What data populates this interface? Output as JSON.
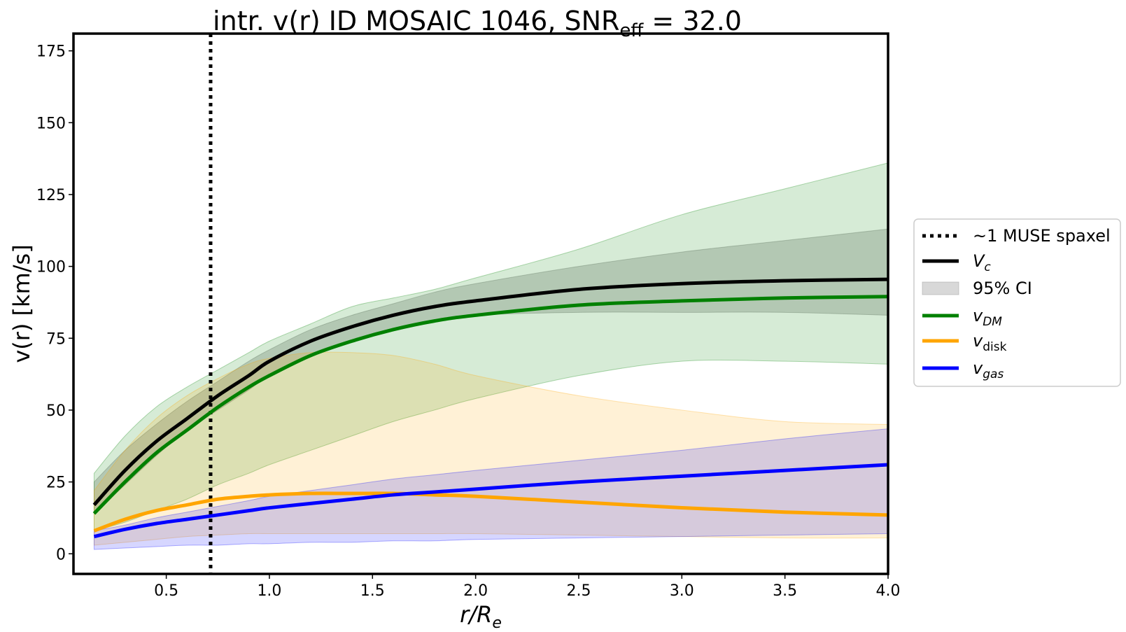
{
  "chart_data": {
    "type": "line",
    "title": {
      "main": "intr. v(r) ID MOSAIC 1046, SNR",
      "sub": "eff",
      "suffix": " = 32.0"
    },
    "xlabel": {
      "main": "r/R",
      "sub": "e"
    },
    "ylabel": "v(r) [km/s]",
    "xlim": [
      0.05,
      4.0
    ],
    "ylim": [
      -7,
      181
    ],
    "xticks": [
      0.5,
      1.0,
      1.5,
      2.0,
      2.5,
      3.0,
      3.5,
      4.0
    ],
    "xtick_labels": [
      "0.5",
      "1.0",
      "1.5",
      "2.0",
      "2.5",
      "3.0",
      "3.5",
      "4.0"
    ],
    "yticks": [
      0,
      25,
      50,
      75,
      100,
      125,
      150,
      175
    ],
    "ytick_labels": [
      "0",
      "25",
      "50",
      "75",
      "100",
      "125",
      "150",
      "175"
    ],
    "grid": false,
    "legend_position": "outside-right",
    "vline": {
      "x": 0.715,
      "style": "dotted",
      "color": "#000000"
    },
    "x": [
      0.15,
      0.3,
      0.45,
      0.6,
      0.75,
      0.9,
      1.0,
      1.2,
      1.4,
      1.6,
      1.8,
      2.0,
      2.5,
      3.0,
      3.5,
      4.0
    ],
    "series": [
      {
        "key": "vc",
        "name": "V",
        "name_sub": "c",
        "italic": true,
        "color": "#000000",
        "values": [
          17,
          29,
          39,
          47,
          55,
          62,
          67,
          74,
          79,
          83,
          86,
          88,
          92,
          94,
          95,
          95.5
        ],
        "band_lower": [
          14,
          24,
          34,
          43,
          50,
          57,
          62,
          69,
          74,
          78,
          81,
          83,
          84,
          84,
          84,
          83
        ],
        "band_upper": [
          25,
          36,
          45,
          53,
          60,
          67,
          71,
          78,
          83,
          87,
          91,
          94,
          100,
          105,
          109,
          113
        ],
        "band_color": "#5a5a5a",
        "band_opacity": 0.25
      },
      {
        "key": "vdm",
        "name": "v",
        "name_sub": "DM",
        "italic": true,
        "color": "#008000",
        "values": [
          14,
          25,
          35,
          43,
          51,
          58,
          62,
          69,
          74,
          78,
          81,
          83,
          86.5,
          88,
          89,
          89.5
        ],
        "band_lower": [
          8,
          11,
          15,
          19,
          24,
          28,
          31,
          36,
          41,
          46,
          50,
          54,
          62,
          67,
          67,
          66
        ],
        "band_upper": [
          28,
          41,
          51,
          58,
          64,
          70,
          74,
          80,
          86,
          89,
          92,
          96,
          106,
          118,
          127,
          136
        ],
        "band_color": "#008000",
        "band_opacity": 0.16
      },
      {
        "key": "vdisk",
        "name": "v",
        "name_sub": "disk",
        "italic_main_only": true,
        "color": "#ffa500",
        "values": [
          8,
          12,
          15,
          17,
          19,
          20,
          20.5,
          21,
          21,
          21,
          20.5,
          20,
          18,
          16,
          14.5,
          13.5
        ],
        "band_lower": [
          3,
          4,
          5,
          6,
          6.5,
          7,
          7,
          7,
          7,
          7,
          7,
          7,
          6.5,
          6,
          5.5,
          5.5
        ],
        "band_upper": [
          22,
          36,
          47,
          55,
          61,
          66,
          68,
          70,
          70,
          69,
          66,
          62,
          55,
          50,
          46,
          45
        ],
        "band_color": "#ffa500",
        "band_opacity": 0.16
      },
      {
        "key": "vgas",
        "name": "v",
        "name_sub": "gas",
        "italic": true,
        "color": "#0000ff",
        "values": [
          6,
          8.5,
          10.5,
          12,
          13.5,
          15,
          16,
          17.5,
          19,
          20.5,
          21.5,
          22.5,
          25,
          27,
          29,
          31
        ],
        "band_lower": [
          1.5,
          2,
          2.5,
          3,
          3,
          3.5,
          3.5,
          4,
          4,
          4.5,
          4.5,
          5,
          5.5,
          6,
          6.5,
          7
        ],
        "band_upper": [
          8,
          10,
          12.5,
          14.5,
          16.5,
          18.5,
          20,
          22,
          24,
          26,
          27.5,
          29,
          32.5,
          36,
          40,
          43.5
        ],
        "band_color": "#0000ff",
        "band_opacity": 0.16
      }
    ],
    "legend": [
      {
        "kind": "dotted",
        "label": "~1 MUSE spaxel",
        "color": "#000000"
      },
      {
        "kind": "line",
        "main": "V",
        "sub": "c",
        "italic_sub": true,
        "color": "#000000"
      },
      {
        "kind": "patch",
        "label": "95% CI",
        "color": "#9e9e9e"
      },
      {
        "kind": "line",
        "main": "v",
        "sub": "DM",
        "italic_sub": true,
        "color": "#008000"
      },
      {
        "kind": "line",
        "main": "v",
        "sub": "disk",
        "italic_sub": false,
        "color": "#ffa500"
      },
      {
        "kind": "line",
        "main": "v",
        "sub": "gas",
        "italic_sub": true,
        "color": "#0000ff"
      }
    ]
  }
}
